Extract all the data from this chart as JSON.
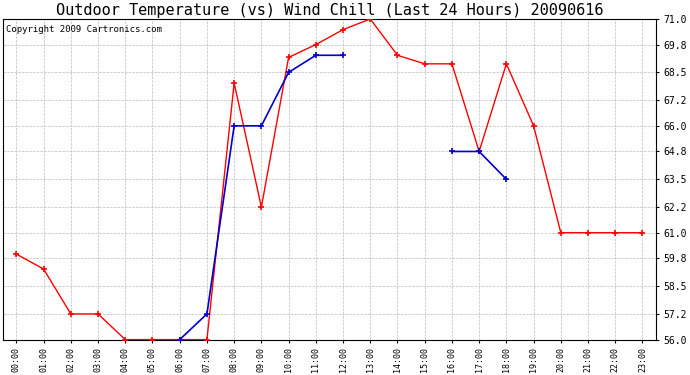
{
  "title": "Outdoor Temperature (vs) Wind Chill (Last 24 Hours) 20090616",
  "copyright": "Copyright 2009 Cartronics.com",
  "hours": [
    "00:00",
    "01:00",
    "02:00",
    "03:00",
    "04:00",
    "05:00",
    "06:00",
    "07:00",
    "08:00",
    "09:00",
    "10:00",
    "11:00",
    "12:00",
    "13:00",
    "14:00",
    "15:00",
    "16:00",
    "17:00",
    "18:00",
    "19:00",
    "20:00",
    "21:00",
    "22:00",
    "23:00"
  ],
  "temp": [
    60.0,
    59.3,
    57.2,
    57.2,
    56.0,
    56.0,
    56.0,
    56.0,
    68.0,
    62.2,
    69.2,
    69.8,
    70.5,
    71.0,
    69.3,
    68.9,
    68.9,
    64.8,
    68.9,
    66.0,
    61.0,
    61.0,
    61.0,
    61.0
  ],
  "wind_chill": [
    null,
    null,
    null,
    null,
    null,
    null,
    56.0,
    57.2,
    66.0,
    66.0,
    68.5,
    69.3,
    69.3,
    null,
    null,
    null,
    64.8,
    64.8,
    63.5,
    null,
    null,
    null,
    null,
    null
  ],
  "ylim": [
    56.0,
    71.0
  ],
  "yticks": [
    56.0,
    57.2,
    58.5,
    59.8,
    61.0,
    62.2,
    63.5,
    64.8,
    66.0,
    67.2,
    68.5,
    69.8,
    71.0
  ],
  "temp_color": "#FF0000",
  "wind_chill_color": "#0000CC",
  "background_color": "#FFFFFF",
  "grid_color": "#BBBBBB",
  "title_fontsize": 11,
  "copyright_fontsize": 6.5,
  "figwidth": 6.9,
  "figheight": 3.75,
  "dpi": 100
}
